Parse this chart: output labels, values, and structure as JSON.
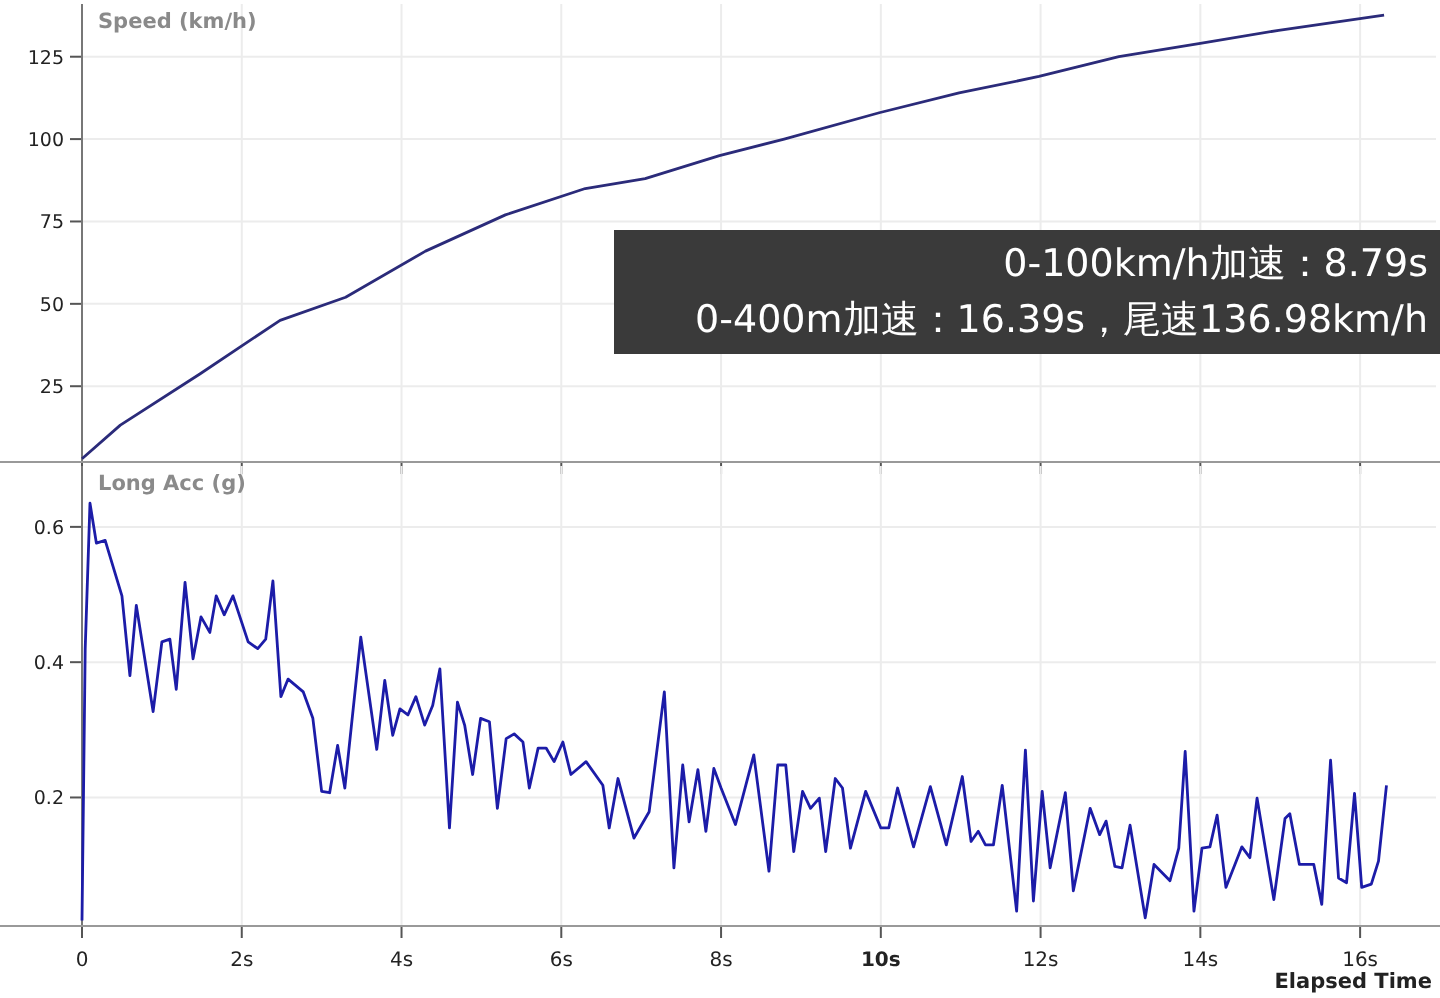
{
  "chart_data": [
    {
      "type": "line",
      "ylabel": "Speed (km/h)",
      "xlim": [
        0,
        16.95
      ],
      "xticks": [
        {
          "value": 0,
          "label": null
        },
        {
          "value": 2,
          "label": null
        },
        {
          "value": 4,
          "label": null
        },
        {
          "value": 6,
          "label": null
        },
        {
          "value": 8,
          "label": null
        },
        {
          "value": 10,
          "label": null
        },
        {
          "value": 12,
          "label": null
        },
        {
          "value": 14,
          "label": null
        },
        {
          "value": 16,
          "label": null
        }
      ],
      "ylim": [
        2,
        141
      ],
      "yticks": [
        25,
        50,
        75,
        100,
        125
      ],
      "grid": true,
      "tick_labels": "y",
      "annotations": [
        "0-100km/h加速：8.79s",
        "0-400m加速：16.39s，尾速136.98km/h"
      ],
      "series": [
        {
          "color": "#2b2b7a",
          "x": [
            0,
            0.48,
            1.48,
            2.48,
            3.3,
            4.3,
            5.3,
            6.3,
            7.05,
            7.98,
            8.79,
            9.98,
            10.98,
            11.98,
            12.98,
            13.98,
            14.98,
            16.3
          ],
          "values": [
            3,
            13.2,
            28.8,
            45,
            52,
            66,
            77,
            85,
            88,
            95,
            100,
            108,
            114,
            119,
            125,
            129,
            133,
            137.6
          ]
        }
      ]
    },
    {
      "type": "line",
      "ylabel": "Long Acc (g)",
      "xlabel": "Elapsed Time",
      "xlim": [
        0,
        16.95
      ],
      "xticks": [
        {
          "value": 0,
          "label": "0"
        },
        {
          "value": 2,
          "label": "2s"
        },
        {
          "value": 4,
          "label": "4s"
        },
        {
          "value": 6,
          "label": "6s"
        },
        {
          "value": 8,
          "label": "8s"
        },
        {
          "value": 10,
          "label": "10s"
        },
        {
          "value": 12,
          "label": "12s"
        },
        {
          "value": 14,
          "label": "14s"
        },
        {
          "value": 16,
          "label": "16s"
        }
      ],
      "ylim": [
        0.01,
        0.69
      ],
      "yticks": [
        0.2,
        0.4,
        0.6
      ],
      "grid": true,
      "series": [
        {
          "color": "#1c1ca8",
          "x": [
            0,
            0.04,
            0.1,
            0.18,
            0.29,
            0.5,
            0.6,
            0.68,
            0.89,
            1.0,
            1.1,
            1.18,
            1.29,
            1.39,
            1.49,
            1.6,
            1.68,
            1.78,
            1.89,
            2.08,
            2.2,
            2.3,
            2.39,
            2.49,
            2.58,
            2.77,
            2.89,
            3.0,
            3.1,
            3.2,
            3.29,
            3.49,
            3.69,
            3.79,
            3.89,
            3.98,
            4.08,
            4.18,
            4.29,
            4.39,
            4.48,
            4.6,
            4.7,
            4.79,
            4.89,
            4.99,
            5.1,
            5.2,
            5.31,
            5.41,
            5.52,
            5.6,
            5.71,
            5.81,
            5.91,
            6.02,
            6.12,
            6.31,
            6.52,
            6.6,
            6.71,
            6.91,
            7.1,
            7.29,
            7.41,
            7.52,
            7.6,
            7.71,
            7.81,
            7.91,
            8.0,
            8.18,
            8.41,
            8.6,
            8.71,
            8.81,
            8.91,
            9.02,
            9.12,
            9.23,
            9.31,
            9.43,
            9.52,
            9.62,
            9.81,
            10.0,
            10.1,
            10.21,
            10.41,
            10.62,
            10.82,
            11.02,
            11.13,
            11.22,
            11.31,
            11.41,
            11.52,
            11.7,
            11.81,
            11.91,
            12.02,
            12.12,
            12.31,
            12.41,
            12.62,
            12.74,
            12.82,
            12.93,
            13.02,
            13.12,
            13.31,
            13.42,
            13.62,
            13.73,
            13.81,
            13.92,
            14.02,
            14.12,
            14.21,
            14.32,
            14.52,
            14.62,
            14.71,
            14.92,
            15.06,
            15.12,
            15.24,
            15.42,
            15.52,
            15.63,
            15.73,
            15.83,
            15.93,
            16.02,
            16.14,
            16.23,
            16.33
          ],
          "values": [
            0.018,
            0.42,
            0.635,
            0.576,
            0.58,
            0.498,
            0.38,
            0.484,
            0.327,
            0.43,
            0.434,
            0.36,
            0.518,
            0.405,
            0.467,
            0.444,
            0.498,
            0.47,
            0.498,
            0.43,
            0.42,
            0.434,
            0.52,
            0.349,
            0.375,
            0.356,
            0.317,
            0.209,
            0.207,
            0.277,
            0.214,
            0.437,
            0.271,
            0.373,
            0.292,
            0.331,
            0.322,
            0.349,
            0.307,
            0.336,
            0.39,
            0.155,
            0.341,
            0.307,
            0.234,
            0.317,
            0.312,
            0.184,
            0.287,
            0.294,
            0.282,
            0.214,
            0.273,
            0.273,
            0.253,
            0.282,
            0.234,
            0.253,
            0.218,
            0.155,
            0.228,
            0.14,
            0.179,
            0.356,
            0.096,
            0.248,
            0.164,
            0.241,
            0.15,
            0.243,
            0.214,
            0.16,
            0.263,
            0.091,
            0.248,
            0.248,
            0.12,
            0.209,
            0.184,
            0.199,
            0.12,
            0.228,
            0.214,
            0.125,
            0.209,
            0.155,
            0.155,
            0.214,
            0.127,
            0.216,
            0.13,
            0.231,
            0.135,
            0.15,
            0.13,
            0.13,
            0.218,
            0.032,
            0.27,
            0.047,
            0.209,
            0.096,
            0.207,
            0.062,
            0.184,
            0.145,
            0.165,
            0.098,
            0.096,
            0.159,
            0.022,
            0.101,
            0.077,
            0.125,
            0.268,
            0.032,
            0.125,
            0.127,
            0.174,
            0.067,
            0.127,
            0.111,
            0.199,
            0.049,
            0.169,
            0.176,
            0.101,
            0.101,
            0.042,
            0.255,
            0.081,
            0.074,
            0.206,
            0.067,
            0.072,
            0.106,
            0.218
          ]
        }
      ]
    }
  ]
}
